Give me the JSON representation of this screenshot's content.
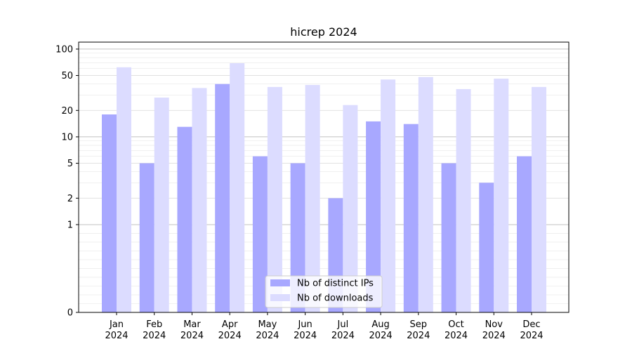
{
  "chart_data": {
    "type": "bar",
    "title": "hicrep 2024",
    "xlabel": "",
    "ylabel": "",
    "scale": "symlog",
    "ylim": [
      0,
      120
    ],
    "yticks": [
      0,
      1,
      2,
      5,
      10,
      20,
      50,
      100
    ],
    "grid": "y",
    "legend_position": "bottom-center",
    "categories": [
      {
        "month": "Jan",
        "year": "2024"
      },
      {
        "month": "Feb",
        "year": "2024"
      },
      {
        "month": "Mar",
        "year": "2024"
      },
      {
        "month": "Apr",
        "year": "2024"
      },
      {
        "month": "May",
        "year": "2024"
      },
      {
        "month": "Jun",
        "year": "2024"
      },
      {
        "month": "Jul",
        "year": "2024"
      },
      {
        "month": "Aug",
        "year": "2024"
      },
      {
        "month": "Sep",
        "year": "2024"
      },
      {
        "month": "Oct",
        "year": "2024"
      },
      {
        "month": "Nov",
        "year": "2024"
      },
      {
        "month": "Dec",
        "year": "2024"
      }
    ],
    "series": [
      {
        "name": "Nb of distinct IPs",
        "color": "#a8a8ff",
        "values": [
          18,
          5,
          13,
          40,
          6,
          5,
          2,
          15,
          14,
          5,
          3,
          6
        ]
      },
      {
        "name": "Nb of downloads",
        "color": "#dcdcff",
        "values": [
          62,
          28,
          36,
          69,
          37,
          39,
          23,
          45,
          48,
          35,
          46,
          37
        ]
      }
    ]
  }
}
